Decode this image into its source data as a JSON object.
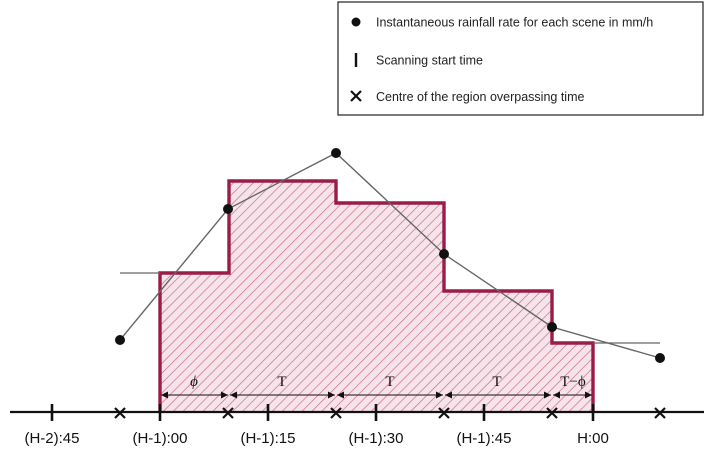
{
  "legend": {
    "rainfall": "Instantaneous rainfall rate for each scene in mm/h",
    "scan_start": "Scanning start time",
    "overpass": "Centre of the region overpassing time"
  },
  "time_axis": {
    "tick_labels": [
      "(H-2):45",
      "(H-1):00",
      "(H-1):15",
      "(H-1):30",
      "(H-1):45",
      "H:00"
    ]
  },
  "intervals": [
    {
      "label": "ϕ"
    },
    {
      "label": "T"
    },
    {
      "label": "T"
    },
    {
      "label": "T"
    },
    {
      "label": "T−ϕ"
    }
  ],
  "colors": {
    "step_outline": "#9b1c48",
    "hatch": "#c97088",
    "fill": "#f6e4ea",
    "rate_line": "#666666",
    "ink": "#111111"
  }
}
